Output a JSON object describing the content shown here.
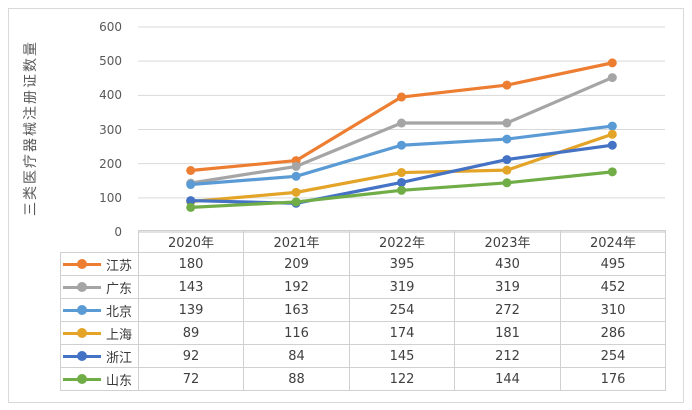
{
  "colors": {
    "background": "#FFFFFF",
    "frame_border": "#D9D9D9",
    "gridline": "#D9D9D9",
    "axis_line": "#C6C6C6",
    "table_border": "#D0D0D0",
    "tick_text": "#595959",
    "table_text": "#404040"
  },
  "chart_data": {
    "type": "line",
    "title": "",
    "xlabel": "",
    "ylabel": "三类医疗器械注册证数量",
    "categories": [
      "2020年",
      "2021年",
      "2022年",
      "2023年",
      "2024年"
    ],
    "series": [
      {
        "name": "江苏",
        "color": "#ED7D31",
        "values": [
          180,
          209,
          395,
          430,
          495
        ]
      },
      {
        "name": "广东",
        "color": "#A5A5A5",
        "values": [
          143,
          192,
          319,
          319,
          452
        ]
      },
      {
        "name": "北京",
        "color": "#5B9BD5",
        "values": [
          139,
          163,
          254,
          272,
          310
        ]
      },
      {
        "name": "上海",
        "color": "#E3A428",
        "values": [
          89,
          116,
          174,
          181,
          286
        ]
      },
      {
        "name": "浙江",
        "color": "#4472C4",
        "values": [
          92,
          84,
          145,
          212,
          254
        ]
      },
      {
        "name": "山东",
        "color": "#70AD47",
        "values": [
          72,
          88,
          122,
          144,
          176
        ]
      }
    ],
    "ylim": [
      0,
      600
    ],
    "yticks": [
      0,
      100,
      200,
      300,
      400,
      500,
      600
    ],
    "grid": true,
    "marker": "circle",
    "legend_position": "data-table-left"
  }
}
